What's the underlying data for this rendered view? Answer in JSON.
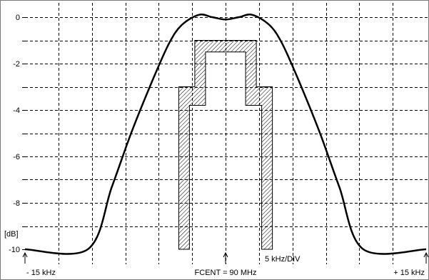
{
  "chart_data": {
    "type": "line",
    "title": "",
    "xlabel": "",
    "ylabel": "[dB]",
    "x_unit": "kHz",
    "xlim": [
      -15,
      15
    ],
    "ylim": [
      -10,
      0.3
    ],
    "x_grid_step": 2.5,
    "y_ticks": [
      0,
      -1,
      -2,
      -3,
      -4,
      -5,
      -6,
      -7,
      -8,
      -9,
      -10
    ],
    "y_tick_labels": [
      {
        "value": 0,
        "label": "0"
      },
      {
        "value": -2,
        "label": "-2"
      },
      {
        "value": -4,
        "label": "-4"
      },
      {
        "value": -6,
        "label": "-6"
      },
      {
        "value": -8,
        "label": "-8"
      },
      {
        "value": -10,
        "label": "-10"
      }
    ],
    "grid": true,
    "x_annotations": [
      {
        "x": -15,
        "label": "- 15 kHz",
        "arrow": true
      },
      {
        "x": 0,
        "label": "FCENT = 90 MHz",
        "arrow": true
      },
      {
        "x": 15,
        "label": "+ 15 kHz",
        "arrow": true
      }
    ],
    "div_label": "5 kHz/DIV",
    "series": [
      {
        "values": [
          {
            "x": -15.0,
            "y": -10.0
          },
          {
            "x": -10.3,
            "y": -10.0
          },
          {
            "x": -8.5,
            "y": -7.3
          },
          {
            "x": -7.0,
            "y": -4.9
          },
          {
            "x": -5.3,
            "y": -2.5
          },
          {
            "x": -4.2,
            "y": -1.1
          },
          {
            "x": -3.3,
            "y": -0.35
          },
          {
            "x": -2.0,
            "y": 0.1
          },
          {
            "x": -1.0,
            "y": 0.0
          },
          {
            "x": 0.0,
            "y": -0.1
          },
          {
            "x": 1.0,
            "y": 0.0
          },
          {
            "x": 2.0,
            "y": 0.1
          },
          {
            "x": 3.3,
            "y": -0.35
          },
          {
            "x": 4.2,
            "y": -1.1
          },
          {
            "x": 5.3,
            "y": -2.5
          },
          {
            "x": 7.0,
            "y": -4.9
          },
          {
            "x": 8.5,
            "y": -7.3
          },
          {
            "x": 10.3,
            "y": -10.0
          },
          {
            "x": 15.0,
            "y": -10.0
          }
        ]
      }
    ],
    "mask": {
      "outer": [
        {
          "x": -3.5,
          "y": -10.0
        },
        {
          "x": -3.5,
          "y": -3.0
        },
        {
          "x": -2.3,
          "y": -3.0
        },
        {
          "x": -2.3,
          "y": -1.0
        },
        {
          "x": 2.3,
          "y": -1.0
        },
        {
          "x": 2.3,
          "y": -3.0
        },
        {
          "x": 3.5,
          "y": -3.0
        },
        {
          "x": 3.5,
          "y": -10.0
        }
      ],
      "inner": [
        {
          "x": -2.7,
          "y": -10.0
        },
        {
          "x": -2.7,
          "y": -3.8
        },
        {
          "x": -1.5,
          "y": -3.8
        },
        {
          "x": -1.5,
          "y": -1.5
        },
        {
          "x": 1.5,
          "y": -1.5
        },
        {
          "x": 1.5,
          "y": -3.8
        },
        {
          "x": 2.7,
          "y": -3.8
        },
        {
          "x": 2.7,
          "y": -10.0
        }
      ]
    }
  }
}
